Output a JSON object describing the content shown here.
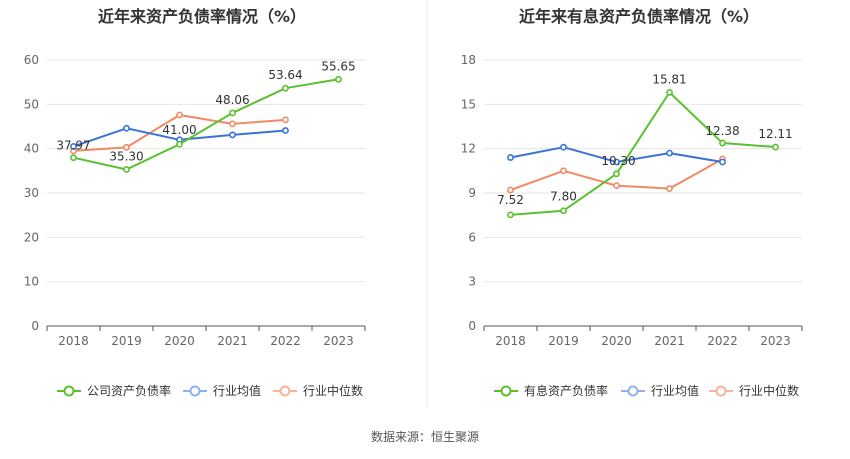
{
  "footer": {
    "source_text": "数据来源：恒生聚源"
  },
  "colors": {
    "company": "#5ac12e",
    "industry_avg": "#3a73d6",
    "industry_median": "#f08a64",
    "legend_avg": "#8fb2ea",
    "legend_median": "#f6b49c"
  },
  "chart_data": [
    {
      "type": "line",
      "title": "近年来资产负债率情况（%）",
      "x": [
        "2018",
        "2019",
        "2020",
        "2021",
        "2022",
        "2023"
      ],
      "ylim": [
        0,
        60
      ],
      "yticks": [
        0,
        10,
        20,
        30,
        40,
        50,
        60
      ],
      "grid": true,
      "legend_position": "bottom",
      "series": [
        {
          "name": "公司资产负债率",
          "values": [
            37.97,
            35.3,
            41.0,
            48.06,
            53.64,
            55.65
          ],
          "labels": [
            "37.97",
            "35.30",
            "41.00",
            "48.06",
            "53.64",
            "55.65"
          ]
        },
        {
          "name": "行业均值",
          "values": [
            40.5,
            44.6,
            42.0,
            43.1,
            44.1,
            null
          ]
        },
        {
          "name": "行业中位数",
          "values": [
            39.5,
            40.3,
            47.6,
            45.6,
            46.5,
            null
          ]
        }
      ]
    },
    {
      "type": "line",
      "title": "近年来有息资产负债率情况（%）",
      "x": [
        "2018",
        "2019",
        "2020",
        "2021",
        "2022",
        "2023"
      ],
      "ylim": [
        0,
        18
      ],
      "yticks": [
        0,
        3,
        6,
        9,
        12,
        15,
        18
      ],
      "grid": true,
      "legend_position": "bottom",
      "series": [
        {
          "name": "有息资产负债率",
          "values": [
            7.52,
            7.8,
            10.3,
            15.81,
            12.38,
            12.11
          ],
          "labels": [
            "7.52",
            "7.80",
            "10.30",
            "15.81",
            "12.38",
            "12.11"
          ]
        },
        {
          "name": "行业均值",
          "values": [
            11.4,
            12.1,
            11.1,
            11.7,
            11.1,
            null
          ]
        },
        {
          "name": "行业中位数",
          "values": [
            9.2,
            10.5,
            9.5,
            9.3,
            11.3,
            null
          ]
        }
      ]
    }
  ]
}
